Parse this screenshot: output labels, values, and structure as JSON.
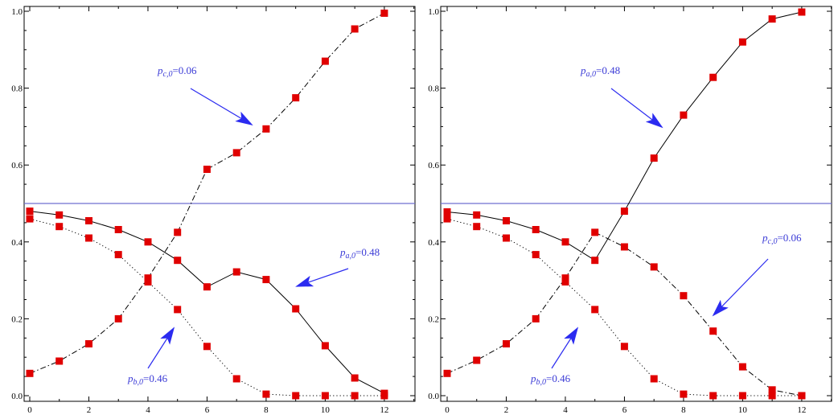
{
  "chart_data": [
    {
      "type": "line",
      "x": [
        0,
        1,
        2,
        3,
        4,
        5,
        6,
        7,
        8,
        9,
        10,
        11,
        12
      ],
      "xlim": [
        0,
        13
      ],
      "ylim": [
        0,
        1
      ],
      "x_ticks": [
        "0",
        "2",
        "4",
        "6",
        "8",
        "10",
        "12"
      ],
      "y_ticks": [
        "0.0",
        "0.2",
        "0.4",
        "0.6",
        "0.8",
        "1.0"
      ],
      "reference_line": 0.5,
      "grid": false,
      "series": [
        {
          "key": "a",
          "style": "solid",
          "values": [
            0.48,
            0.47,
            0.455,
            0.432,
            0.4,
            0.352,
            0.283,
            0.322,
            0.302,
            0.226,
            0.13,
            0.046,
            0.006
          ]
        },
        {
          "key": "b",
          "style": "dotted",
          "values": [
            0.46,
            0.44,
            0.41,
            0.367,
            0.296,
            0.224,
            0.128,
            0.044,
            0.004,
            0.0,
            0.0,
            0.0,
            0.0
          ]
        },
        {
          "key": "c",
          "style": "dashdot",
          "values": [
            0.058,
            0.09,
            0.135,
            0.2,
            0.306,
            0.425,
            0.589,
            0.632,
            0.694,
            0.775,
            0.87,
            0.954,
            0.995
          ]
        }
      ],
      "annotations": [
        {
          "label": "p",
          "sub": "c,0",
          "value": "=0.06"
        },
        {
          "label": "p",
          "sub": "a,0",
          "value": "=0.48"
        },
        {
          "label": "p",
          "sub": "b,0",
          "value": "=0.46"
        }
      ]
    },
    {
      "type": "line",
      "x": [
        0,
        1,
        2,
        3,
        4,
        5,
        6,
        7,
        8,
        9,
        10,
        11,
        12
      ],
      "xlim": [
        0,
        13
      ],
      "ylim": [
        0,
        1
      ],
      "x_ticks": [
        "0",
        "2",
        "4",
        "6",
        "8",
        "10",
        "12"
      ],
      "y_ticks": [
        "0.0",
        "0.2",
        "0.4",
        "0.6",
        "0.8",
        "1.0"
      ],
      "reference_line": 0.5,
      "grid": false,
      "series": [
        {
          "key": "a",
          "style": "solid",
          "values": [
            0.478,
            0.47,
            0.455,
            0.432,
            0.4,
            0.352,
            0.48,
            0.618,
            0.73,
            0.828,
            0.92,
            0.98,
            0.998
          ]
        },
        {
          "key": "b",
          "style": "dotted",
          "values": [
            0.46,
            0.44,
            0.41,
            0.367,
            0.296,
            0.224,
            0.128,
            0.044,
            0.004,
            0.0,
            0.0,
            0.0,
            0.0
          ]
        },
        {
          "key": "c",
          "style": "dashdot",
          "values": [
            0.058,
            0.092,
            0.135,
            0.2,
            0.306,
            0.425,
            0.387,
            0.335,
            0.26,
            0.168,
            0.075,
            0.015,
            0.0
          ]
        }
      ],
      "annotations": [
        {
          "label": "p",
          "sub": "a,0",
          "value": "=0.48"
        },
        {
          "label": "p",
          "sub": "c,0",
          "value": "=0.06"
        },
        {
          "label": "p",
          "sub": "b,0",
          "value": "=0.46"
        }
      ]
    }
  ],
  "colors": {
    "marker": "#e00000",
    "reference_line": "#6f6fd0",
    "arrow": "#2b2bf0",
    "annotation_text": "#3a3ad6",
    "axis": "#000000"
  }
}
